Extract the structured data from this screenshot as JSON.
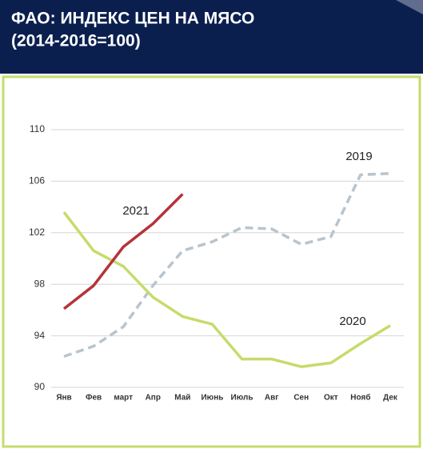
{
  "chart_data": {
    "type": "line",
    "title": "ФАО: ИНДЕКС ЦЕН НА МЯСО",
    "subtitle": "(2014-2016=100)",
    "categories": [
      "Янв",
      "Фев",
      "март",
      "Апр",
      "Май",
      "Июнь",
      "Июль",
      "Авг",
      "Сен",
      "Окт",
      "Нояб",
      "Дек"
    ],
    "series": [
      {
        "name": "2019",
        "color": "#b9c4cc",
        "dashed": true,
        "values": [
          92.4,
          93.2,
          94.7,
          97.9,
          100.6,
          101.3,
          102.4,
          102.3,
          101.1,
          101.7,
          106.5,
          106.6
        ]
      },
      {
        "name": "2020",
        "color": "#c5dc6b",
        "dashed": false,
        "values": [
          103.6,
          100.6,
          99.4,
          97.0,
          95.5,
          94.9,
          92.2,
          92.2,
          91.6,
          91.9,
          93.4,
          94.8
        ]
      },
      {
        "name": "2021",
        "color": "#b5343a",
        "dashed": false,
        "values": [
          96.1,
          97.9,
          100.9,
          102.7,
          105.0,
          null,
          null,
          null,
          null,
          null,
          null,
          null
        ]
      }
    ],
    "ylim": [
      90,
      110
    ],
    "yticks": [
      90,
      94,
      98,
      102,
      106,
      110
    ],
    "grid": true
  }
}
